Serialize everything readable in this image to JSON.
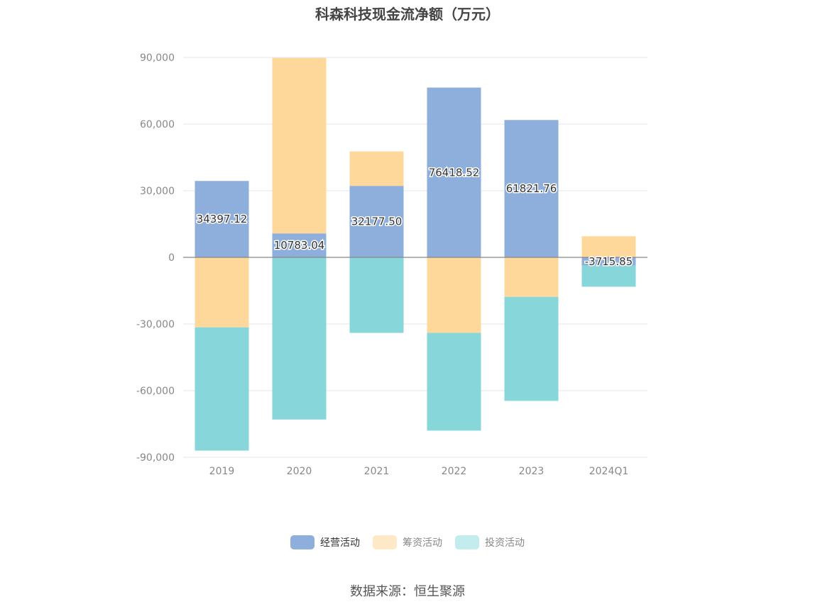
{
  "chart_data": {
    "type": "bar",
    "stacked": true,
    "title": "科森科技现金流净额（万元）",
    "categories": [
      "2019",
      "2020",
      "2021",
      "2022",
      "2023",
      "2024Q1"
    ],
    "series": [
      {
        "name": "经营活动",
        "color": "#8eaedb",
        "values": [
          34397.12,
          10783.04,
          32177.5,
          76418.52,
          61821.76,
          -3715.85
        ],
        "labels": [
          "34397.12",
          "10783.04",
          "32177.50",
          "76418.52",
          "61821.76",
          "-3715.85"
        ]
      },
      {
        "name": "筹资活动",
        "color": "#fed89a",
        "values": [
          -31500,
          79000,
          15500,
          -34000,
          -17800,
          9500
        ]
      },
      {
        "name": "投资活动",
        "color": "#87d6d9",
        "values": [
          -55500,
          -73000,
          -34000,
          -44000,
          -46800,
          -9500
        ]
      }
    ],
    "ylim": [
      -90000,
      90000
    ],
    "yticks": [
      90000,
      60000,
      30000,
      0,
      -30000,
      -60000,
      -90000
    ],
    "ytick_labels": [
      "90,000",
      "60,000",
      "30,000",
      "0",
      "-30,000",
      "-60,000",
      "-90,000"
    ],
    "xlabel": "",
    "ylabel": "",
    "legend_position": "bottom",
    "grid": true
  },
  "legend_swatch_colors": [
    "#8eaedb",
    "#ffe8c6",
    "#c2ecee"
  ],
  "source": "数据来源：恒生聚源"
}
